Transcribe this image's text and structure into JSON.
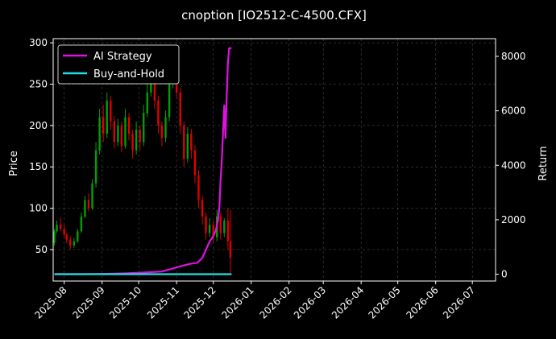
{
  "chart_data": {
    "type": "line",
    "title": "cnoption [IO2512-C-4500.CFX]",
    "ylabel_left": "Price",
    "ylabel_right": "Return",
    "grid": true,
    "legend_position": "top-left",
    "x_range": [
      "2025-07-23",
      "2026-07-20"
    ],
    "x_ticks": [
      "2025-08",
      "2025-09",
      "2025-10",
      "2025-11",
      "2025-12",
      "2026-01",
      "2026-02",
      "2026-03",
      "2026-04",
      "2026-05",
      "2026-06",
      "2026-07"
    ],
    "y_left_range": [
      12,
      305
    ],
    "y_left_ticks": [
      50,
      100,
      150,
      200,
      250,
      300
    ],
    "y_right_range": [
      -250,
      8650
    ],
    "y_right_ticks": [
      0,
      2000,
      4000,
      6000,
      8000
    ],
    "colors": {
      "up": "#00a000",
      "down": "#e00000",
      "strategy": "#e011e0",
      "buyhold": "#22dddd",
      "grid": "#555555"
    },
    "series": [
      {
        "name": "AI Strategy",
        "axis": "right",
        "points": [
          [
            "2025-07-24",
            0
          ],
          [
            "2025-08-15",
            0
          ],
          [
            "2025-09-01",
            10
          ],
          [
            "2025-09-20",
            30
          ],
          [
            "2025-10-05",
            60
          ],
          [
            "2025-10-20",
            100
          ],
          [
            "2025-10-28",
            200
          ],
          [
            "2025-11-05",
            300
          ],
          [
            "2025-11-12",
            380
          ],
          [
            "2025-11-18",
            420
          ],
          [
            "2025-11-22",
            600
          ],
          [
            "2025-11-25",
            900
          ],
          [
            "2025-11-28",
            1200
          ],
          [
            "2025-12-01",
            1400
          ],
          [
            "2025-12-03",
            1600
          ],
          [
            "2025-12-05",
            2000
          ],
          [
            "2025-12-06",
            2500
          ],
          [
            "2025-12-07",
            3500
          ],
          [
            "2025-12-08",
            4200
          ],
          [
            "2025-12-09",
            5200
          ],
          [
            "2025-12-10",
            6200
          ],
          [
            "2025-12-11",
            5000
          ],
          [
            "2025-12-12",
            6600
          ],
          [
            "2025-12-13",
            7800
          ],
          [
            "2025-12-14",
            8300
          ],
          [
            "2025-12-16",
            8300
          ]
        ]
      },
      {
        "name": "Buy-and-Hold",
        "axis": "right",
        "points": [
          [
            "2025-07-24",
            0
          ],
          [
            "2025-12-16",
            0
          ]
        ]
      }
    ],
    "candles": [
      [
        "2025-07-24",
        58,
        72,
        55,
        75,
        52
      ],
      [
        "2025-07-26",
        72,
        80,
        70,
        85,
        68
      ],
      [
        "2025-07-29",
        80,
        75,
        72,
        88,
        70
      ],
      [
        "2025-08-01",
        75,
        68,
        65,
        80,
        63
      ],
      [
        "2025-08-03",
        68,
        62,
        58,
        70,
        55
      ],
      [
        "2025-08-06",
        62,
        55,
        50,
        66,
        48
      ],
      [
        "2025-08-09",
        55,
        60,
        52,
        64,
        50
      ],
      [
        "2025-08-12",
        60,
        72,
        58,
        75,
        56
      ],
      [
        "2025-08-15",
        72,
        90,
        70,
        95,
        68
      ],
      [
        "2025-08-18",
        90,
        110,
        88,
        115,
        86
      ],
      [
        "2025-08-21",
        110,
        100,
        96,
        118,
        95
      ],
      [
        "2025-08-24",
        100,
        130,
        98,
        135,
        96
      ],
      [
        "2025-08-27",
        130,
        170,
        125,
        180,
        120
      ],
      [
        "2025-08-30",
        170,
        210,
        165,
        220,
        160
      ],
      [
        "2025-09-02",
        210,
        190,
        180,
        225,
        175
      ],
      [
        "2025-09-05",
        190,
        230,
        185,
        240,
        180
      ],
      [
        "2025-09-08",
        230,
        205,
        195,
        236,
        190
      ],
      [
        "2025-09-11",
        205,
        180,
        172,
        212,
        168
      ],
      [
        "2025-09-14",
        180,
        200,
        175,
        208,
        170
      ],
      [
        "2025-09-17",
        200,
        175,
        168,
        205,
        160
      ],
      [
        "2025-09-20",
        175,
        210,
        172,
        220,
        168
      ],
      [
        "2025-09-23",
        210,
        190,
        182,
        215,
        178
      ],
      [
        "2025-09-26",
        190,
        170,
        160,
        195,
        150
      ],
      [
        "2025-09-29",
        170,
        195,
        165,
        205,
        160
      ],
      [
        "2025-10-02",
        195,
        180,
        170,
        200,
        165
      ],
      [
        "2025-10-05",
        180,
        215,
        175,
        225,
        170
      ],
      [
        "2025-10-08",
        215,
        240,
        210,
        250,
        205
      ],
      [
        "2025-10-11",
        240,
        260,
        235,
        268,
        230
      ],
      [
        "2025-10-14",
        260,
        230,
        220,
        265,
        215
      ],
      [
        "2025-10-17",
        230,
        200,
        190,
        236,
        180
      ],
      [
        "2025-10-20",
        200,
        185,
        175,
        205,
        165
      ],
      [
        "2025-10-23",
        185,
        210,
        180,
        218,
        175
      ],
      [
        "2025-10-26",
        210,
        250,
        205,
        258,
        200
      ],
      [
        "2025-10-29",
        250,
        280,
        245,
        290,
        240
      ],
      [
        "2025-11-01",
        280,
        240,
        232,
        286,
        225
      ],
      [
        "2025-11-04",
        240,
        200,
        190,
        246,
        180
      ],
      [
        "2025-11-07",
        200,
        160,
        150,
        205,
        140
      ],
      [
        "2025-11-10",
        160,
        190,
        155,
        198,
        150
      ],
      [
        "2025-11-13",
        190,
        170,
        160,
        196,
        155
      ],
      [
        "2025-11-16",
        170,
        140,
        130,
        176,
        120
      ],
      [
        "2025-11-19",
        140,
        110,
        100,
        146,
        95
      ],
      [
        "2025-11-22",
        110,
        90,
        80,
        115,
        75
      ],
      [
        "2025-11-25",
        90,
        70,
        62,
        95,
        58
      ],
      [
        "2025-11-28",
        70,
        80,
        65,
        88,
        60
      ],
      [
        "2025-12-01",
        80,
        65,
        58,
        85,
        55
      ],
      [
        "2025-12-04",
        65,
        90,
        60,
        98,
        58
      ],
      [
        "2025-12-07",
        90,
        70,
        62,
        95,
        55
      ],
      [
        "2025-12-10",
        70,
        85,
        65,
        88,
        60
      ],
      [
        "2025-12-13",
        85,
        60,
        50,
        100,
        45
      ],
      [
        "2025-12-15",
        60,
        40,
        20,
        98,
        18
      ]
    ]
  }
}
